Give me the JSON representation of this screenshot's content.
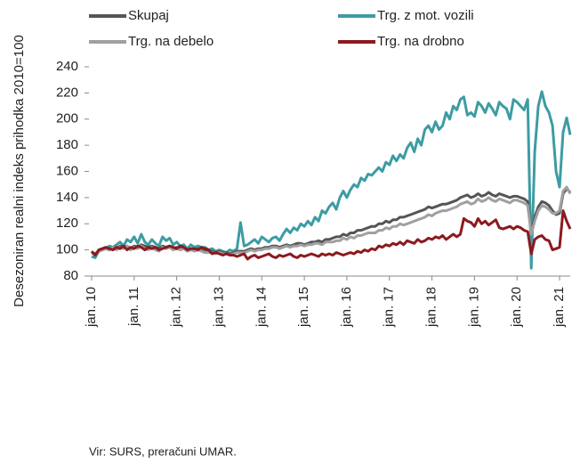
{
  "chart_data": {
    "type": "line",
    "ylabel": "Desezoniran realni indeks prihodka 2010=100",
    "source": "Vir: SURS, preračuni UMAR.",
    "categories": [
      "jan. 10",
      null,
      null,
      null,
      null,
      null,
      null,
      null,
      null,
      null,
      null,
      null,
      "jan. 11",
      null,
      null,
      null,
      null,
      null,
      null,
      null,
      null,
      null,
      null,
      null,
      "jan. 12",
      null,
      null,
      null,
      null,
      null,
      null,
      null,
      null,
      null,
      null,
      null,
      "jan. 13",
      null,
      null,
      null,
      null,
      null,
      null,
      null,
      null,
      null,
      null,
      null,
      "jan. 14",
      null,
      null,
      null,
      null,
      null,
      null,
      null,
      null,
      null,
      null,
      null,
      "jan. 15",
      null,
      null,
      null,
      null,
      null,
      null,
      null,
      null,
      null,
      null,
      null,
      "jan. 16",
      null,
      null,
      null,
      null,
      null,
      null,
      null,
      null,
      null,
      null,
      null,
      "jan. 17",
      null,
      null,
      null,
      null,
      null,
      null,
      null,
      null,
      null,
      null,
      null,
      "jan. 18",
      null,
      null,
      null,
      null,
      null,
      null,
      null,
      null,
      null,
      null,
      null,
      "jan. 19",
      null,
      null,
      null,
      null,
      null,
      null,
      null,
      null,
      null,
      null,
      null,
      "jan. 20",
      null,
      null,
      null,
      null,
      null,
      null,
      null,
      null,
      null,
      null,
      null,
      "jan. 21",
      null,
      null,
      null
    ],
    "series": [
      {
        "name": "Skupaj",
        "color": "#555555",
        "values": [
          98,
          97,
          99,
          100,
          101,
          100,
          102,
          101,
          103,
          102,
          103,
          101,
          103,
          102,
          104,
          103,
          102,
          103,
          102,
          101,
          103,
          102,
          103,
          101,
          102,
          101,
          102,
          100,
          101,
          100,
          101,
          100,
          99,
          99,
          99,
          98,
          99,
          98,
          98,
          97,
          98,
          99,
          99,
          99,
          100,
          101,
          100,
          101,
          101,
          102,
          102,
          103,
          103,
          102,
          103,
          104,
          103,
          104,
          105,
          105,
          104,
          105,
          106,
          106,
          107,
          106,
          108,
          108,
          109,
          110,
          110,
          112,
          111,
          113,
          113,
          115,
          115,
          116,
          117,
          118,
          118,
          120,
          120,
          122,
          121,
          123,
          123,
          125,
          125,
          126,
          127,
          128,
          129,
          130,
          131,
          133,
          132,
          133,
          134,
          135,
          135,
          136,
          137,
          138,
          140,
          141,
          142,
          140,
          141,
          143,
          141,
          142,
          144,
          142,
          141,
          143,
          142,
          141,
          140,
          141,
          141,
          140,
          139,
          137,
          113,
          125,
          133,
          137,
          136,
          134,
          130,
          127,
          128,
          143,
          147,
          144
        ]
      },
      {
        "name": "Trg. z mot. vozili",
        "color": "#3d9ca3",
        "values": [
          95,
          94,
          99,
          100,
          101,
          103,
          102,
          104,
          106,
          103,
          108,
          106,
          110,
          105,
          112,
          106,
          104,
          108,
          105,
          103,
          110,
          107,
          109,
          104,
          106,
          103,
          104,
          101,
          104,
          102,
          103,
          102,
          102,
          100,
          101,
          99,
          100,
          99,
          98,
          100,
          99,
          101,
          121,
          103,
          104,
          106,
          108,
          105,
          110,
          108,
          106,
          109,
          110,
          107,
          112,
          116,
          113,
          117,
          115,
          120,
          118,
          122,
          119,
          125,
          122,
          130,
          128,
          133,
          136,
          131,
          140,
          145,
          140,
          146,
          150,
          148,
          155,
          153,
          158,
          157,
          160,
          163,
          160,
          167,
          165,
          172,
          168,
          173,
          170,
          178,
          182,
          175,
          185,
          180,
          192,
          195,
          190,
          198,
          192,
          195,
          205,
          200,
          210,
          207,
          215,
          217,
          203,
          205,
          202,
          213,
          210,
          205,
          212,
          208,
          203,
          213,
          210,
          208,
          200,
          215,
          213,
          210,
          207,
          215,
          86,
          175,
          210,
          221,
          210,
          205,
          195,
          160,
          148,
          190,
          201,
          188
        ]
      },
      {
        "name": "Trg. na debelo",
        "color": "#a0a0a0",
        "values": [
          98,
          96,
          99,
          100,
          101,
          100,
          102,
          100,
          102,
          101,
          103,
          100,
          102,
          101,
          103,
          101,
          100,
          102,
          100,
          99,
          102,
          101,
          102,
          100,
          101,
          100,
          101,
          99,
          100,
          99,
          100,
          99,
          98,
          98,
          98,
          97,
          98,
          97,
          97,
          96,
          97,
          98,
          98,
          98,
          99,
          100,
          99,
          100,
          100,
          101,
          101,
          102,
          102,
          101,
          102,
          103,
          102,
          103,
          103,
          104,
          103,
          104,
          104,
          105,
          105,
          104,
          106,
          106,
          106,
          107,
          107,
          109,
          108,
          110,
          109,
          111,
          111,
          112,
          113,
          113,
          113,
          115,
          115,
          117,
          116,
          118,
          118,
          120,
          119,
          120,
          121,
          122,
          123,
          124,
          125,
          127,
          126,
          128,
          129,
          130,
          130,
          131,
          132,
          133,
          135,
          136,
          137,
          135,
          136,
          139,
          137,
          138,
          140,
          138,
          137,
          139,
          138,
          137,
          136,
          138,
          138,
          137,
          136,
          134,
          112,
          122,
          130,
          134,
          133,
          131,
          128,
          128,
          130,
          145,
          148,
          143
        ]
      },
      {
        "name": "Trg. na drobno",
        "color": "#8b1a1f",
        "values": [
          99,
          96,
          100,
          101,
          102,
          101,
          100,
          102,
          101,
          103,
          100,
          102,
          101,
          103,
          102,
          100,
          102,
          101,
          102,
          100,
          101,
          102,
          103,
          102,
          101,
          103,
          102,
          100,
          101,
          101,
          100,
          102,
          101,
          100,
          97,
          98,
          97,
          96,
          97,
          96,
          96,
          95,
          96,
          97,
          93,
          95,
          96,
          94,
          95,
          96,
          97,
          95,
          94,
          96,
          95,
          96,
          97,
          95,
          94,
          96,
          95,
          96,
          97,
          96,
          95,
          97,
          96,
          97,
          96,
          98,
          97,
          96,
          97,
          98,
          97,
          99,
          98,
          100,
          99,
          101,
          100,
          103,
          102,
          104,
          103,
          105,
          104,
          106,
          104,
          107,
          106,
          105,
          108,
          106,
          107,
          109,
          108,
          110,
          109,
          111,
          108,
          110,
          112,
          110,
          112,
          124,
          122,
          121,
          118,
          124,
          120,
          122,
          119,
          121,
          123,
          117,
          116,
          117,
          118,
          116,
          118,
          117,
          115,
          114,
          97,
          108,
          110,
          111,
          108,
          107,
          100,
          101,
          102,
          130,
          122,
          116
        ]
      }
    ],
    "ylim": [
      80,
      240
    ],
    "yticks": [
      80,
      100,
      120,
      140,
      160,
      180,
      200,
      220,
      240
    ],
    "grid": false
  }
}
